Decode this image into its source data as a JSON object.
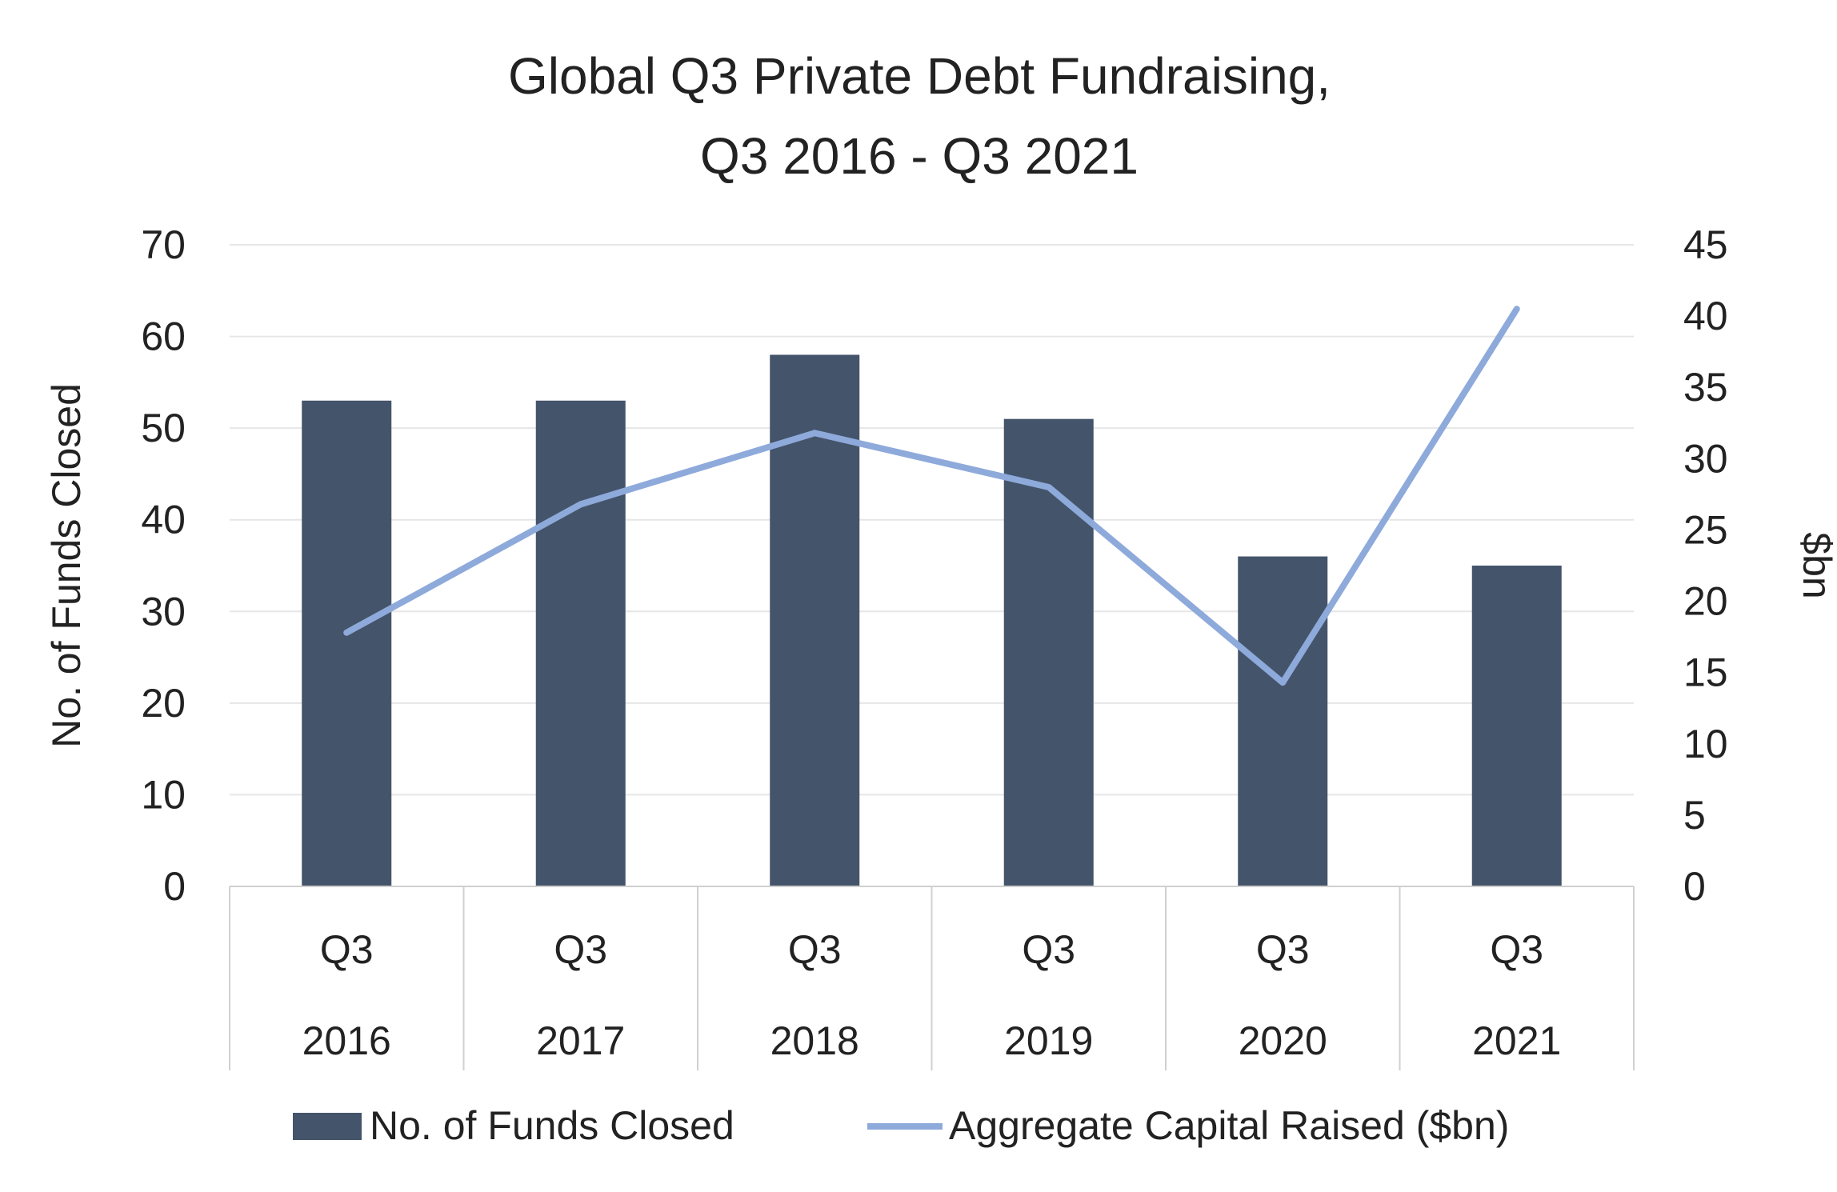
{
  "chart_data": {
    "type": "bar",
    "title_lines": [
      "Global Q3 Private Debt Fundraising,",
      "Q3 2016 - Q3 2021"
    ],
    "categories": [
      {
        "quarter": "Q3",
        "year": "2016"
      },
      {
        "quarter": "Q3",
        "year": "2017"
      },
      {
        "quarter": "Q3",
        "year": "2018"
      },
      {
        "quarter": "Q3",
        "year": "2019"
      },
      {
        "quarter": "Q3",
        "year": "2020"
      },
      {
        "quarter": "Q3",
        "year": "2021"
      }
    ],
    "series": [
      {
        "name": "No. of Funds Closed",
        "type": "bar",
        "axis": "left",
        "color": "#44546a",
        "values": [
          53,
          53,
          58,
          51,
          36,
          35
        ]
      },
      {
        "name": "Aggregate Capital Raised ($bn)",
        "type": "line",
        "axis": "right",
        "color": "#8eaadb",
        "values": [
          17.8,
          26.8,
          31.8,
          28.0,
          14.3,
          40.5
        ]
      }
    ],
    "ylabel_left": "No. of Funds Closed",
    "ylabel_right": "$bn",
    "ylim_left": [
      0,
      70
    ],
    "ylim_right": [
      0,
      45
    ],
    "yticks_left": [
      0,
      10,
      20,
      30,
      40,
      50,
      60,
      70
    ],
    "yticks_right": [
      0,
      5,
      10,
      15,
      20,
      25,
      30,
      35,
      40,
      45
    ],
    "grid": true,
    "legend": "bottom"
  }
}
